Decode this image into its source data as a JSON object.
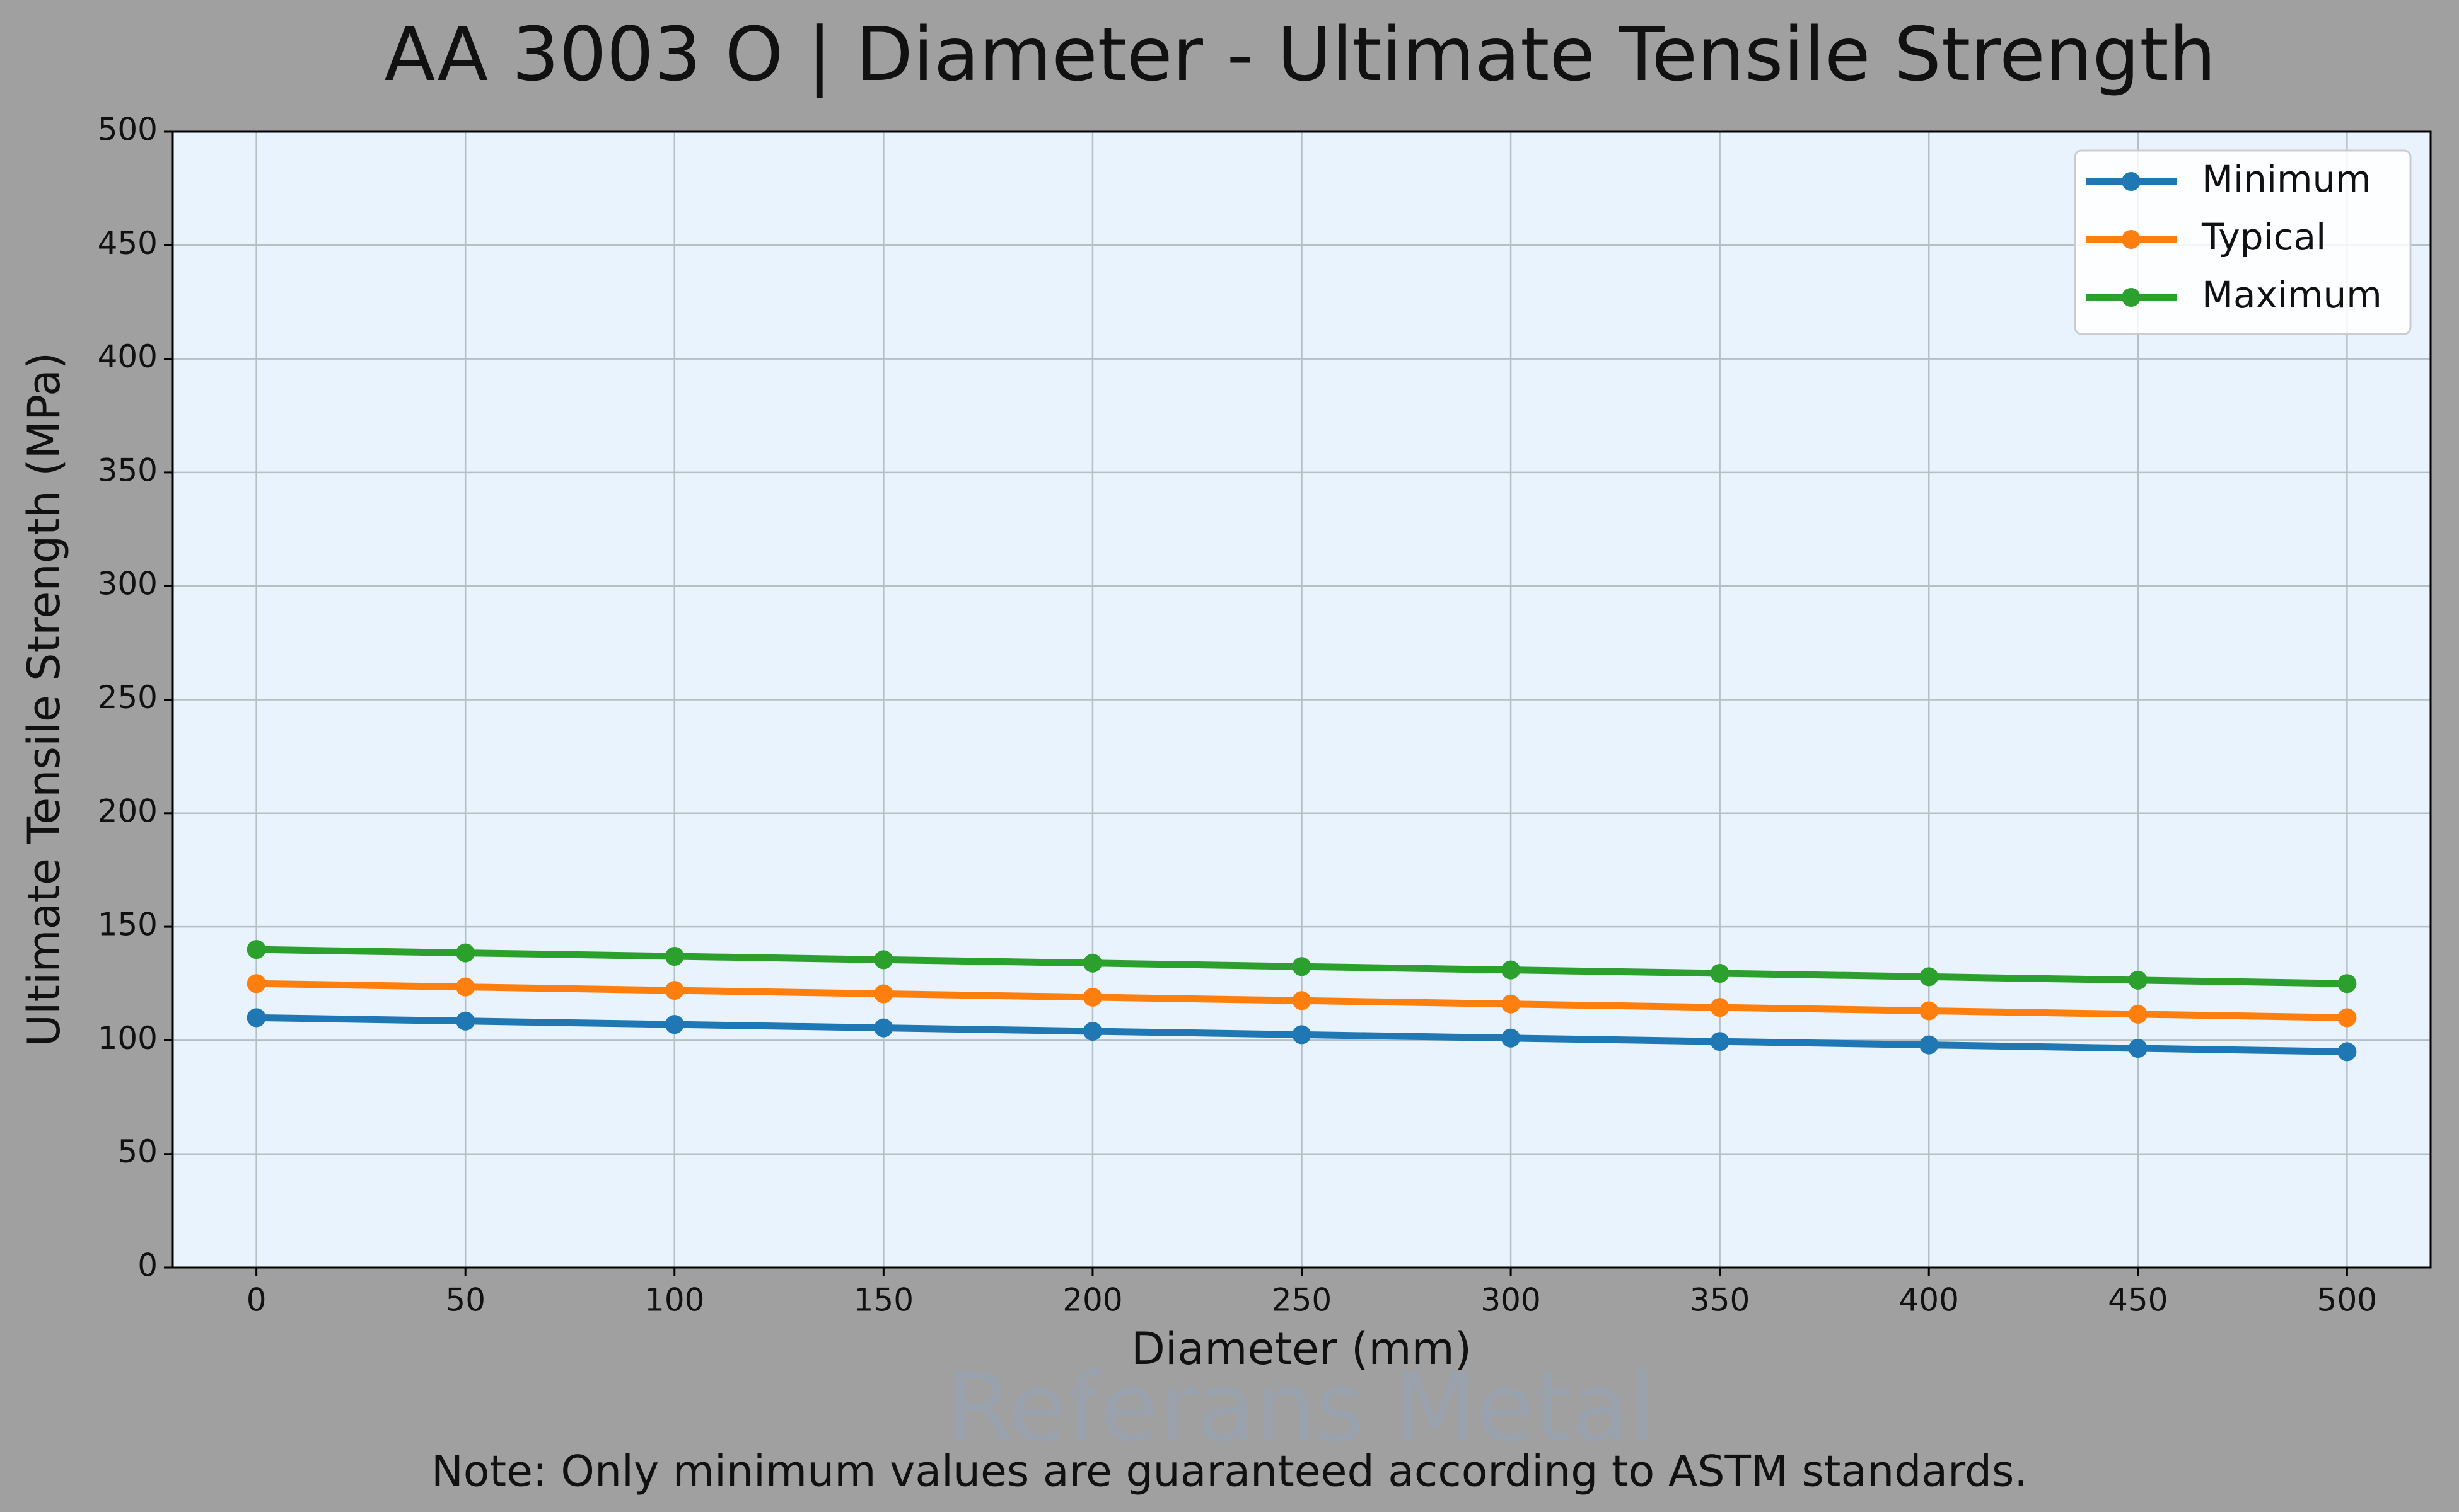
{
  "chart_data": {
    "type": "line",
    "title": "AA 3003 O | Diameter - Ultimate Tensile Strength",
    "xlabel": "Diameter (mm)",
    "ylabel": "Ultimate Tensile Strength (MPa)",
    "watermark": "Referans Metal",
    "note": "Note: Only minimum values are guaranteed according to ASTM standards.",
    "x": [
      0,
      50,
      100,
      150,
      200,
      250,
      300,
      350,
      400,
      450,
      500
    ],
    "series": [
      {
        "name": "Minimum",
        "color": "#1f77b4",
        "values": [
          110,
          108.5,
          107,
          105.5,
          104,
          102.5,
          101,
          99.5,
          98,
          96.5,
          95
        ]
      },
      {
        "name": "Typical",
        "color": "#ff7f0e",
        "values": [
          125,
          123.5,
          122,
          120.5,
          119,
          117.5,
          116,
          114.5,
          113,
          111.5,
          110
        ]
      },
      {
        "name": "Maximum",
        "color": "#2ca02c",
        "values": [
          140,
          138.5,
          137,
          135.5,
          134,
          132.5,
          131,
          129.5,
          128,
          126.5,
          125
        ]
      }
    ],
    "xlim": [
      -20,
      520
    ],
    "xticks": [
      0,
      50,
      100,
      150,
      200,
      250,
      300,
      350,
      400,
      450,
      500
    ],
    "ylim": [
      0,
      500
    ],
    "yticks": [
      0,
      50,
      100,
      150,
      200,
      250,
      300,
      350,
      400,
      450,
      500
    ],
    "grid": true,
    "legend": "upper right"
  }
}
